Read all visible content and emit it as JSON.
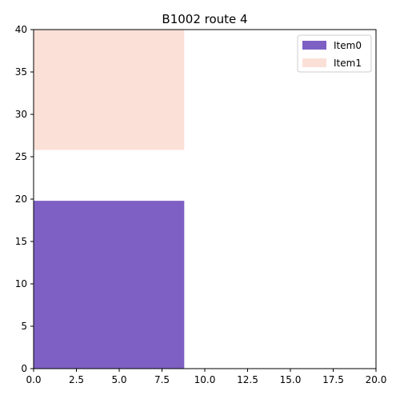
{
  "chart_data": {
    "type": "bar",
    "title": "B1002 route 4",
    "xlabel": "",
    "ylabel": "",
    "xlim": [
      0,
      20
    ],
    "ylim": [
      0,
      40
    ],
    "grid": false,
    "legend_position": "top-right",
    "x_ticks": [
      "0.0",
      "2.5",
      "5.0",
      "7.5",
      "10.0",
      "12.5",
      "15.0",
      "17.5",
      "20.0"
    ],
    "y_ticks": [
      "0",
      "5",
      "10",
      "15",
      "20",
      "25",
      "30",
      "35",
      "40"
    ],
    "series": [
      {
        "name": "Item0",
        "color": "#7e60c4",
        "x_start": 0,
        "x_end": 8.8,
        "y_bottom": 0,
        "y_top": 19.8
      },
      {
        "name": "Item1",
        "color": "#fbe0d7",
        "x_start": 0,
        "x_end": 8.8,
        "y_bottom": 25.8,
        "y_top": 40
      }
    ]
  }
}
